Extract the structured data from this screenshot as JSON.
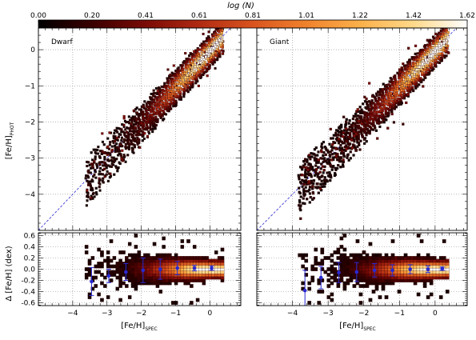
{
  "colorbar": {
    "title": "log (N)",
    "ticks": [
      "0.00",
      "0.20",
      "0.41",
      "0.61",
      "0.81",
      "1.01",
      "1.22",
      "1.42",
      "1.62"
    ],
    "range": [
      0.0,
      1.62
    ],
    "colormap": [
      "#000000",
      "#3a0000",
      "#7a0a06",
      "#b02a12",
      "#d9541e",
      "#f0822c",
      "#fbb04a",
      "#ffd98a",
      "#ffffff"
    ]
  },
  "axes": {
    "top_ylabel_main": "[Fe/H]",
    "top_ylabel_sub": "PHOT",
    "bottom_ylabel": "Δ [Fe/H] (dex)",
    "xlabel_main": "[Fe/H]",
    "xlabel_sub": "SPEC"
  },
  "chart_data": [
    {
      "type": "heatmap",
      "panel": "Dwarf",
      "label": "Dwarf",
      "xlim": [
        -5.0,
        0.9
      ],
      "ylim": [
        -5.0,
        0.6
      ],
      "xticks": [
        -4,
        -3,
        -2,
        -1,
        0
      ],
      "yticks": [
        -4,
        -3,
        -2,
        -1,
        0
      ],
      "one_to_one_line": true,
      "grid": true,
      "locus": {
        "x_range": [
          -3.6,
          0.4
        ],
        "peak_x": 0.0,
        "peak_logN": 1.62
      }
    },
    {
      "type": "heatmap",
      "panel": "Giant",
      "label": "Giant",
      "xlim": [
        -5.0,
        0.9
      ],
      "ylim": [
        -5.0,
        0.6
      ],
      "xticks": [
        -4,
        -3,
        -2,
        -1,
        0
      ],
      "yticks": [
        -4,
        -3,
        -2,
        -1,
        0
      ],
      "one_to_one_line": true,
      "grid": true,
      "locus": {
        "x_range": [
          -3.8,
          0.4
        ],
        "peak_x": 0.0,
        "peak_logN": 1.62
      }
    },
    {
      "type": "scatter",
      "panel": "Dwarf residual",
      "xlim": [
        -5.0,
        0.9
      ],
      "ylim": [
        -0.65,
        0.65
      ],
      "xticks": [
        -4,
        -3,
        -2,
        -1,
        0
      ],
      "yticks": [
        -0.6,
        -0.4,
        -0.2,
        0.0,
        0.2,
        0.4,
        0.6
      ],
      "ytick_labels": [
        "-0.6",
        "-0.4",
        "-0.2",
        "0.0",
        "0.2",
        "0.4",
        "0.6"
      ],
      "binned_means": [
        {
          "x": -3.45,
          "y": -0.22,
          "err": 0.25
        },
        {
          "x": -2.95,
          "y": -0.12,
          "err": 0.12
        },
        {
          "x": -2.45,
          "y": -0.05,
          "err": 0.15
        },
        {
          "x": -1.95,
          "y": -0.02,
          "err": 0.22
        },
        {
          "x": -1.45,
          "y": 0.0,
          "err": 0.18
        },
        {
          "x": -0.95,
          "y": 0.02,
          "err": 0.12
        },
        {
          "x": -0.45,
          "y": 0.02,
          "err": 0.05
        },
        {
          "x": 0.05,
          "y": 0.02,
          "err": 0.04
        }
      ]
    },
    {
      "type": "scatter",
      "panel": "Giant residual",
      "xlim": [
        -5.0,
        0.9
      ],
      "ylim": [
        -0.65,
        0.65
      ],
      "xticks": [
        -4,
        -3,
        -2,
        -1,
        0
      ],
      "yticks": [
        -0.6,
        -0.4,
        -0.2,
        0.0,
        0.2,
        0.4,
        0.6
      ],
      "binned_means": [
        {
          "x": -3.65,
          "y": -0.38,
          "err": 0.36
        },
        {
          "x": -3.2,
          "y": -0.15,
          "err": 0.2
        },
        {
          "x": -2.7,
          "y": -0.06,
          "err": 0.18
        },
        {
          "x": -2.2,
          "y": -0.05,
          "err": 0.17
        },
        {
          "x": -1.7,
          "y": -0.02,
          "err": 0.12
        },
        {
          "x": -1.2,
          "y": -0.02,
          "err": 0.1
        },
        {
          "x": -0.7,
          "y": 0.0,
          "err": 0.08
        },
        {
          "x": -0.2,
          "y": 0.0,
          "err": 0.06
        },
        {
          "x": 0.2,
          "y": 0.01,
          "err": 0.03
        }
      ]
    }
  ]
}
